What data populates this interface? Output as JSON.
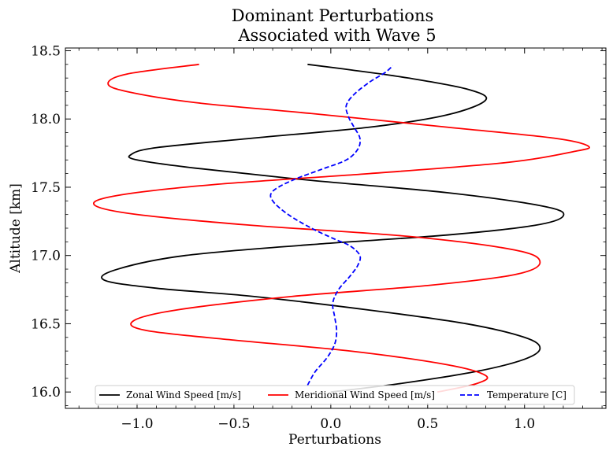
{
  "chart_data": {
    "type": "line",
    "title_line1": "Dominant Perturbations",
    "title_line2": "Associated with Wave 5",
    "xlabel": "Perturbations",
    "ylabel": "Altitude [km]",
    "xlim": [
      -1.37,
      1.42
    ],
    "ylim": [
      15.88,
      18.52
    ],
    "xticks": [
      -1.0,
      -0.5,
      0.0,
      0.5,
      1.0
    ],
    "xtick_labels": [
      "−1.0",
      "−0.5",
      "0.0",
      "0.5",
      "1.0"
    ],
    "yticks": [
      16.0,
      16.5,
      17.0,
      17.5,
      18.0,
      18.5
    ],
    "ytick_labels": [
      "16.0",
      "16.5",
      "17.0",
      "17.5",
      "18.0",
      "18.5"
    ],
    "grid": false,
    "legend_position": "bottom-center",
    "series": [
      {
        "name": "Zonal Wind Speed [m/s]",
        "color": "#000000",
        "dash": "solid",
        "points": [
          [
            0.0,
            16.0
          ],
          [
            0.35,
            16.06
          ],
          [
            0.75,
            16.15
          ],
          [
            1.0,
            16.24
          ],
          [
            1.08,
            16.32
          ],
          [
            1.0,
            16.4
          ],
          [
            0.7,
            16.5
          ],
          [
            0.2,
            16.6
          ],
          [
            -0.4,
            16.7
          ],
          [
            -0.9,
            16.76
          ],
          [
            -1.17,
            16.82
          ],
          [
            -1.1,
            16.9
          ],
          [
            -0.75,
            17.0
          ],
          [
            -0.1,
            17.08
          ],
          [
            0.6,
            17.15
          ],
          [
            1.05,
            17.22
          ],
          [
            1.2,
            17.29
          ],
          [
            1.1,
            17.36
          ],
          [
            0.6,
            17.46
          ],
          [
            -0.1,
            17.55
          ],
          [
            -0.7,
            17.64
          ],
          [
            -1.0,
            17.7
          ],
          [
            -1.03,
            17.74
          ],
          [
            -0.9,
            17.79
          ],
          [
            -0.4,
            17.86
          ],
          [
            0.2,
            17.94
          ],
          [
            0.6,
            18.03
          ],
          [
            0.8,
            18.14
          ],
          [
            0.7,
            18.22
          ],
          [
            0.4,
            18.3
          ],
          [
            0.1,
            18.36
          ],
          [
            -0.12,
            18.4
          ]
        ]
      },
      {
        "name": "Meridional Wind Speed [m/s]",
        "color": "#ff0000",
        "dash": "solid",
        "points": [
          [
            0.55,
            16.0
          ],
          [
            0.75,
            16.06
          ],
          [
            0.8,
            16.12
          ],
          [
            0.6,
            16.2
          ],
          [
            0.1,
            16.3
          ],
          [
            -0.5,
            16.38
          ],
          [
            -0.95,
            16.45
          ],
          [
            -1.02,
            16.52
          ],
          [
            -0.8,
            16.6
          ],
          [
            -0.2,
            16.7
          ],
          [
            0.5,
            16.78
          ],
          [
            0.95,
            16.86
          ],
          [
            1.08,
            16.95
          ],
          [
            0.95,
            17.04
          ],
          [
            0.4,
            17.14
          ],
          [
            -0.4,
            17.22
          ],
          [
            -1.0,
            17.3
          ],
          [
            -1.22,
            17.37
          ],
          [
            -1.1,
            17.44
          ],
          [
            -0.6,
            17.52
          ],
          [
            0.2,
            17.6
          ],
          [
            0.9,
            17.68
          ],
          [
            1.25,
            17.76
          ],
          [
            1.33,
            17.8
          ],
          [
            1.15,
            17.86
          ],
          [
            0.6,
            17.94
          ],
          [
            -0.1,
            18.04
          ],
          [
            -0.7,
            18.12
          ],
          [
            -1.05,
            18.2
          ],
          [
            -1.15,
            18.26
          ],
          [
            -1.05,
            18.33
          ],
          [
            -0.68,
            18.4
          ]
        ]
      },
      {
        "name": "Temperature [C]",
        "color": "#0000ff",
        "dash": "dashed",
        "points": [
          [
            -0.12,
            16.05
          ],
          [
            -0.08,
            16.15
          ],
          [
            -0.02,
            16.25
          ],
          [
            0.02,
            16.35
          ],
          [
            0.03,
            16.45
          ],
          [
            0.02,
            16.55
          ],
          [
            0.01,
            16.65
          ],
          [
            0.04,
            16.75
          ],
          [
            0.1,
            16.85
          ],
          [
            0.14,
            16.93
          ],
          [
            0.15,
            17.0
          ],
          [
            0.1,
            17.07
          ],
          [
            0.02,
            17.12
          ],
          [
            -0.1,
            17.2
          ],
          [
            -0.22,
            17.3
          ],
          [
            -0.3,
            17.4
          ],
          [
            -0.3,
            17.47
          ],
          [
            -0.2,
            17.55
          ],
          [
            -0.05,
            17.63
          ],
          [
            0.08,
            17.7
          ],
          [
            0.14,
            17.78
          ],
          [
            0.15,
            17.86
          ],
          [
            0.12,
            17.94
          ],
          [
            0.09,
            18.02
          ],
          [
            0.08,
            18.1
          ],
          [
            0.12,
            18.18
          ],
          [
            0.2,
            18.27
          ],
          [
            0.28,
            18.34
          ],
          [
            0.32,
            18.39
          ]
        ]
      }
    ]
  }
}
